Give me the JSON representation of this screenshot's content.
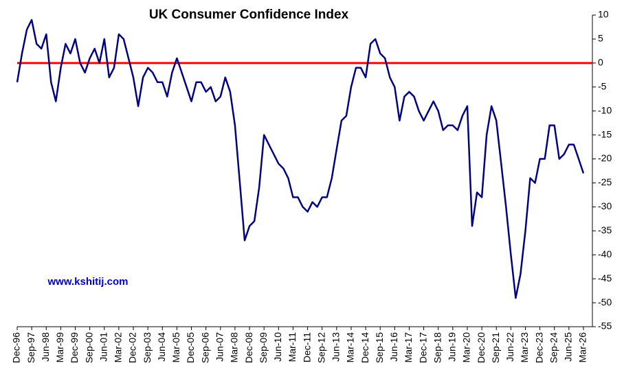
{
  "chart_data": {
    "type": "line",
    "title": "UK Consumer Confidence Index",
    "annotation": "www.kshitij.com",
    "categories": [
      "Dec-96",
      null,
      null,
      "Sep-97",
      null,
      null,
      "Jun-98",
      null,
      null,
      "Mar-99",
      null,
      null,
      "Dec-99",
      null,
      null,
      "Sep-00",
      null,
      null,
      "Jun-01",
      null,
      null,
      "Mar-02",
      null,
      null,
      "Dec-02",
      null,
      null,
      "Sep-03",
      null,
      null,
      "Jun-04",
      null,
      null,
      "Mar-05",
      null,
      null,
      "Dec-05",
      null,
      null,
      "Sep-06",
      null,
      null,
      "Jun-07",
      null,
      null,
      "Mar-08",
      null,
      null,
      "Dec-08",
      null,
      null,
      "Sep-09",
      null,
      null,
      "Jun-10",
      null,
      null,
      "Mar-11",
      null,
      null,
      "Dec-11",
      null,
      null,
      "Sep-12",
      null,
      null,
      "Jun-13",
      null,
      null,
      "Mar-14",
      null,
      null,
      "Dec-14",
      null,
      null,
      "Sep-15",
      null,
      null,
      "Jun-16",
      null,
      null,
      "Mar-17",
      null,
      null,
      "Dec-17",
      null,
      null,
      "Sep-18",
      null,
      null,
      "Jun-19",
      null,
      null,
      "Mar-20",
      null,
      null,
      "Dec-20",
      null,
      null,
      "Sep-21",
      null,
      null,
      "Jun-22",
      null,
      null,
      "Mar-23",
      null,
      null,
      "Dec-23",
      null,
      null,
      "Sep-24",
      null,
      null,
      "Jun-25",
      null,
      null,
      "Mar-26"
    ],
    "series": [
      {
        "color": "#000080",
        "values": [
          -4,
          2,
          7,
          9,
          4,
          3,
          6,
          -4,
          -8,
          -1,
          4,
          2,
          5,
          0,
          -2,
          1,
          3,
          0,
          5,
          -3,
          -1,
          6,
          5,
          1,
          -3,
          -9,
          -3,
          -1,
          -2,
          -4,
          -4,
          -7,
          -2,
          1,
          -2,
          -5,
          -8,
          -4,
          -4,
          -6,
          -5,
          -8,
          -7,
          -3,
          -6,
          -13,
          -25,
          -37,
          -34,
          -33,
          -26,
          -15,
          -17,
          -19,
          -21,
          -22,
          -24,
          -28,
          -28,
          -30,
          -31,
          -29,
          -30,
          -28,
          -28,
          -24,
          -18,
          -12,
          -11,
          -5,
          -1,
          -1,
          -3,
          4,
          5,
          2,
          1,
          -3,
          -5,
          -12,
          -7,
          -6,
          -7,
          -10,
          -12,
          -10,
          -8,
          -10,
          -14,
          -13,
          -13,
          -14,
          -11,
          -9,
          -34,
          -27,
          -28,
          -15,
          -9,
          -12,
          -21,
          -30,
          -40,
          -49,
          -44,
          -35,
          -24,
          -25,
          -20,
          -20,
          -13,
          -13,
          -20,
          -19,
          -17,
          -17,
          -20,
          -23
        ]
      }
    ],
    "reference_line": {
      "value": 0,
      "color": "#ff0000"
    },
    "ylim": [
      -55,
      10
    ],
    "yticks": [
      10,
      5,
      0,
      -5,
      -10,
      -15,
      -20,
      -25,
      -30,
      -35,
      -40,
      -45,
      -50,
      -55
    ],
    "y_axis_side": "right"
  }
}
